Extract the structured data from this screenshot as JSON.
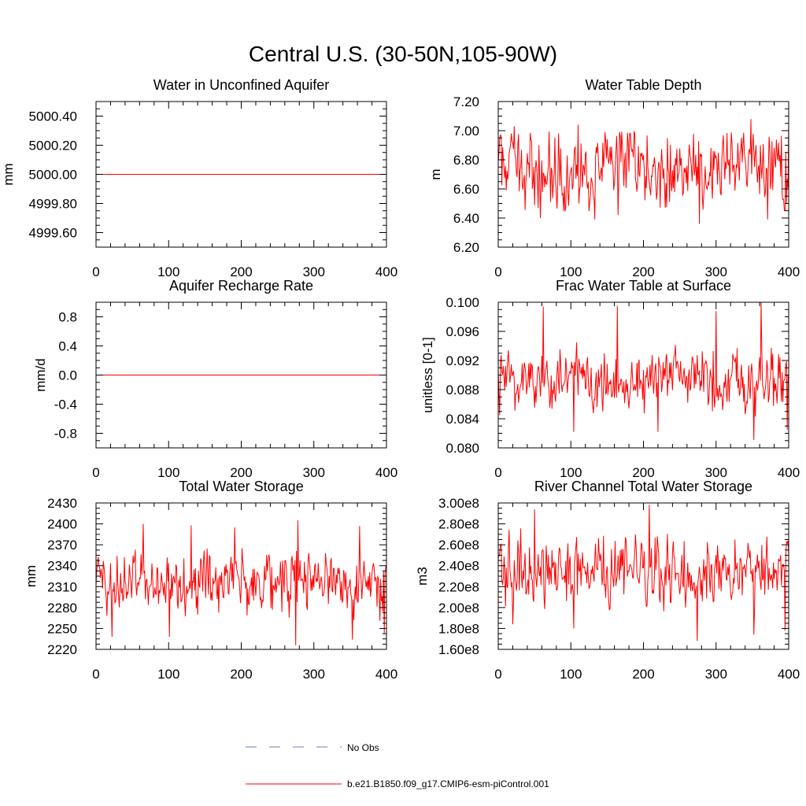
{
  "page_title": "Central U.S. (30-50N,105-90W)",
  "legend": [
    {
      "label": "No Obs",
      "color": "#6a7fc4",
      "style": "dashed"
    },
    {
      "label": "b.e21.B1850.f09_g17.CMIP6-esm-piControl.001",
      "color": "#ff0000",
      "style": "solid"
    }
  ],
  "chart_data": [
    {
      "type": "line",
      "title": "Water in Unconfined Aquifer",
      "ylabel": "mm",
      "xlim": [
        0,
        400
      ],
      "ylim": [
        4999.5,
        5000.5
      ],
      "xticks": [
        0,
        100,
        200,
        300,
        400
      ],
      "xtick_labels": [
        "0",
        "100",
        "200",
        "300",
        "400"
      ],
      "yticks": [
        4999.6,
        4999.8,
        5000.0,
        5000.2,
        5000.4
      ],
      "ytick_labels": [
        "4999.60",
        "4999.80",
        "5000.00",
        "5000.20",
        "5000.40"
      ],
      "series": [
        {
          "name": "b.e21.B1850.f09_g17.CMIP6-esm-piControl.001",
          "color": "#ff0000",
          "constant": 5000.0
        }
      ]
    },
    {
      "type": "line",
      "title": "Water Table Depth",
      "ylabel": "m",
      "xlim": [
        0,
        400
      ],
      "ylim": [
        6.2,
        7.2
      ],
      "xticks": [
        0,
        100,
        200,
        300,
        400
      ],
      "xtick_labels": [
        "0",
        "100",
        "200",
        "300",
        "400"
      ],
      "yticks": [
        6.2,
        6.4,
        6.6,
        6.8,
        7.0,
        7.2
      ],
      "ytick_labels": [
        "6.20",
        "6.40",
        "6.60",
        "6.80",
        "7.00",
        "7.20"
      ],
      "series": [
        {
          "name": "b.e21.B1850.f09_g17.CMIP6-esm-piControl.001",
          "color": "#ff0000",
          "mean": 6.74,
          "amplitude": 0.17,
          "min": 6.36,
          "max": 7.08,
          "extremes": [
            [
              2,
              6.95
            ],
            [
              22,
              7.03
            ],
            [
              58,
              6.4
            ],
            [
              110,
              7.04
            ],
            [
              133,
              6.39
            ],
            [
              165,
              6.42
            ],
            [
              181,
              6.98
            ],
            [
              277,
              6.36
            ],
            [
              348,
              7.08
            ],
            [
              371,
              6.39
            ],
            [
              400,
              7.04
            ]
          ]
        }
      ]
    },
    {
      "type": "line",
      "title": "Aquifer Recharge Rate",
      "ylabel": "mm/d",
      "xlim": [
        0,
        400
      ],
      "ylim": [
        -1.0,
        1.0
      ],
      "xticks": [
        0,
        100,
        200,
        300,
        400
      ],
      "xtick_labels": [
        "0",
        "100",
        "200",
        "300",
        "400"
      ],
      "yticks": [
        -0.8,
        -0.4,
        0.0,
        0.4,
        0.8
      ],
      "ytick_labels": [
        "-0.8",
        "-0.4",
        "0.0",
        "0.4",
        "0.8"
      ],
      "series": [
        {
          "name": "b.e21.B1850.f09_g17.CMIP6-esm-piControl.001",
          "color": "#ff0000",
          "constant": 0.0
        }
      ]
    },
    {
      "type": "line",
      "title": "Frac Water Table at Surface",
      "ylabel": "unitless [0-1]",
      "xlim": [
        0,
        400
      ],
      "ylim": [
        0.08,
        0.1
      ],
      "xticks": [
        0,
        100,
        200,
        300,
        400
      ],
      "xtick_labels": [
        "0",
        "100",
        "200",
        "300",
        "400"
      ],
      "yticks": [
        0.08,
        0.084,
        0.088,
        0.092,
        0.096,
        0.1
      ],
      "ytick_labels": [
        "0.080",
        "0.084",
        "0.088",
        "0.092",
        "0.096",
        "0.100"
      ],
      "series": [
        {
          "name": "b.e21.B1850.f09_g17.CMIP6-esm-piControl.001",
          "color": "#ff0000",
          "mean": 0.0895,
          "amplitude": 0.0028,
          "min": 0.081,
          "max": 0.1,
          "extremes": [
            [
              2,
              0.0845
            ],
            [
              62,
              0.0994
            ],
            [
              104,
              0.0822
            ],
            [
              164,
              0.0995
            ],
            [
              220,
              0.0822
            ],
            [
              300,
              0.0988
            ],
            [
              352,
              0.0811
            ],
            [
              362,
              0.1
            ],
            [
              398,
              0.0825
            ]
          ]
        }
      ]
    },
    {
      "type": "line",
      "title": "Total Water Storage",
      "ylabel": "mm",
      "xlim": [
        0,
        400
      ],
      "ylim": [
        2220,
        2430
      ],
      "xticks": [
        0,
        100,
        200,
        300,
        400
      ],
      "xtick_labels": [
        "0",
        "100",
        "200",
        "300",
        "400"
      ],
      "yticks": [
        2220,
        2250,
        2280,
        2310,
        2340,
        2370,
        2400,
        2430
      ],
      "ytick_labels": [
        "2220",
        "2250",
        "2280",
        "2310",
        "2340",
        "2370",
        "2400",
        "2430"
      ],
      "series": [
        {
          "name": "b.e21.B1850.f09_g17.CMIP6-esm-piControl.001",
          "color": "#ff0000",
          "mean": 2318,
          "amplitude": 28,
          "min": 2226,
          "max": 2405,
          "extremes": [
            [
              22,
              2238
            ],
            [
              65,
              2400
            ],
            [
              101,
              2238
            ],
            [
              131,
              2398
            ],
            [
              191,
              2395
            ],
            [
              275,
              2226
            ],
            [
              278,
              2405
            ],
            [
              353,
              2234
            ],
            [
              363,
              2397
            ],
            [
              397,
              2242
            ]
          ]
        }
      ]
    },
    {
      "type": "line",
      "title": "River Channel Total Water Storage",
      "ylabel": "m3",
      "xlim": [
        0,
        400
      ],
      "ylim": [
        160000000,
        300000000
      ],
      "xticks": [
        0,
        100,
        200,
        300,
        400
      ],
      "xtick_labels": [
        "0",
        "100",
        "200",
        "300",
        "400"
      ],
      "yticks": [
        160000000,
        180000000,
        200000000,
        220000000,
        240000000,
        260000000,
        280000000,
        300000000
      ],
      "ytick_labels": [
        "1.60e8",
        "1.80e8",
        "2.00e8",
        "2.20e8",
        "2.40e8",
        "2.60e8",
        "2.80e8",
        "3.00e8"
      ],
      "series": [
        {
          "name": "b.e21.B1850.f09_g17.CMIP6-esm-piControl.001",
          "color": "#ff0000",
          "mean": 235000000,
          "amplitude": 20000000,
          "min": 168000000,
          "max": 298000000,
          "extremes": [
            [
              20,
              184000000
            ],
            [
              50,
              294000000
            ],
            [
              104,
              180000000
            ],
            [
              208,
              298000000
            ],
            [
              274,
              168000000
            ],
            [
              352,
              174000000
            ],
            [
              395,
              178000000
            ]
          ]
        }
      ]
    }
  ]
}
